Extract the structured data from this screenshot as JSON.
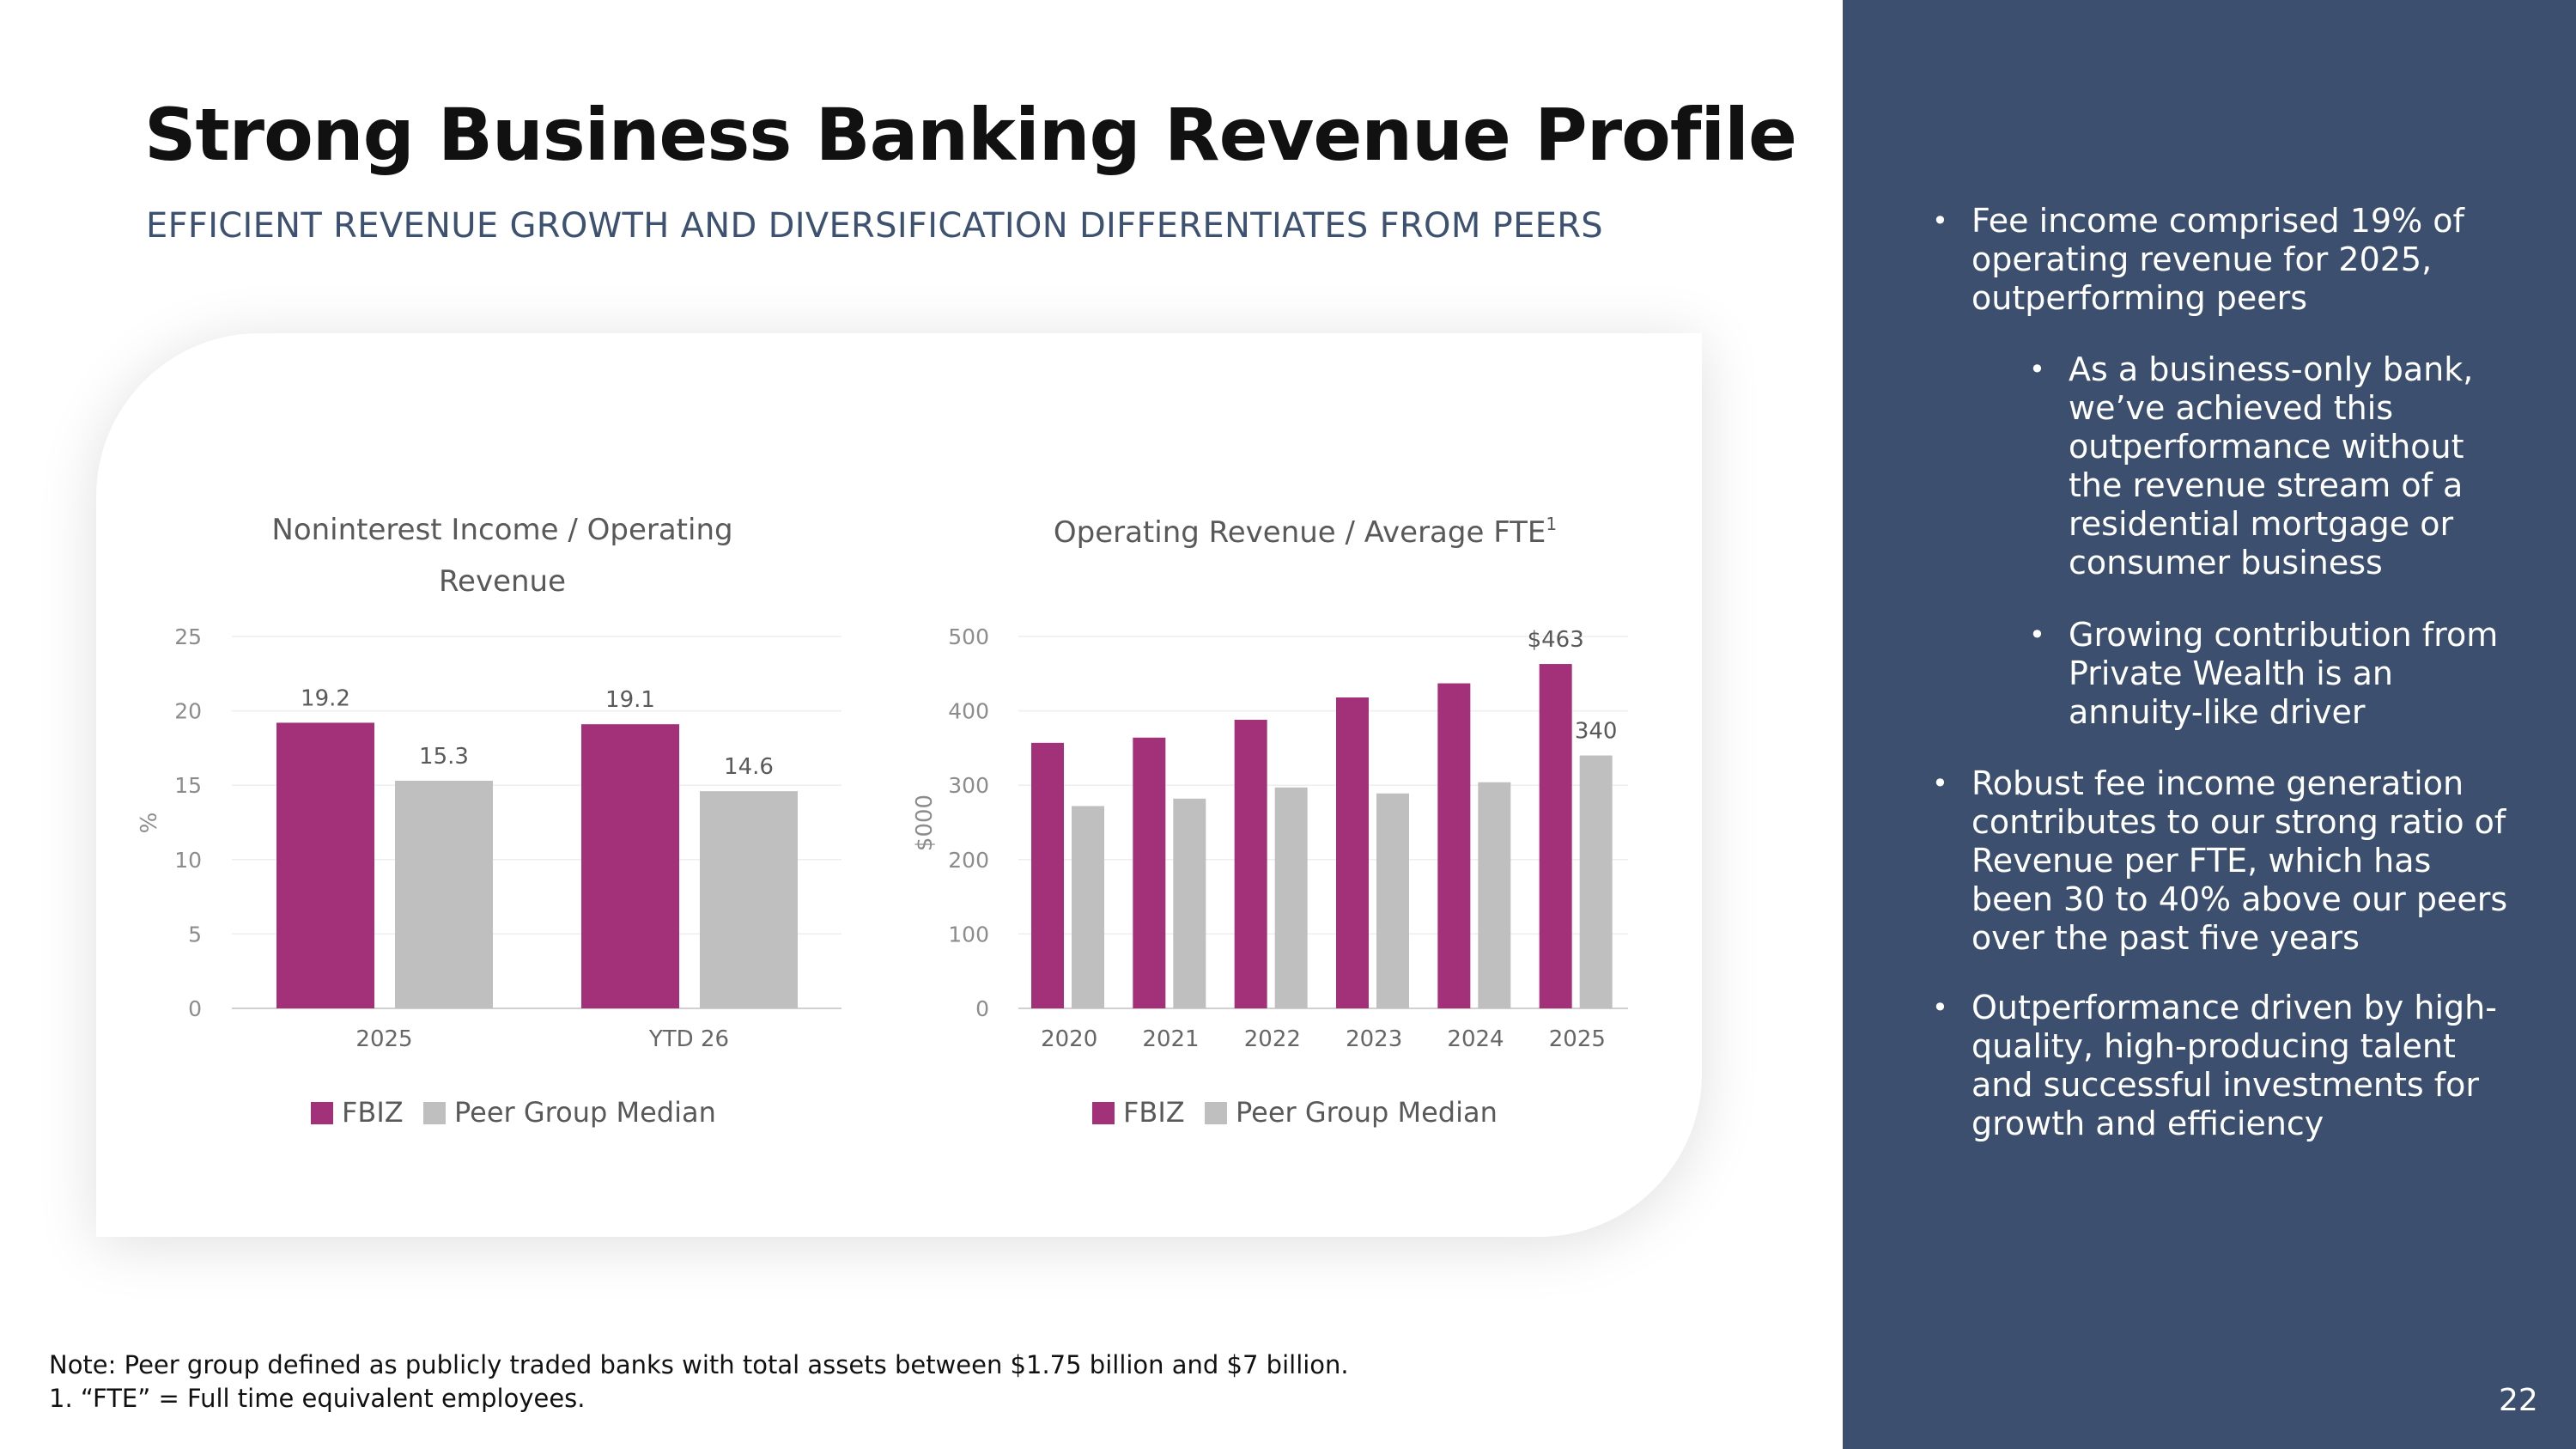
{
  "slide": {
    "title": "Strong Business Banking Revenue Profile",
    "subtitle": "EFFICIENT REVENUE GROWTH AND DIVERSIFICATION DIFFERENTIATES FROM PEERS",
    "page_number": "22",
    "notes": [
      "Note: Peer group defined as publicly traded banks with total assets between $1.75 billion and $7 billion.",
      "1. “FTE” = Full time equivalent employees."
    ]
  },
  "sidebar": {
    "bullets": [
      {
        "text": [
          "Fee income comprised 19% of",
          "operating revenue for 2025,",
          "outperforming peers"
        ]
      },
      {
        "text": [
          "As a business-only bank,",
          "we’ve achieved this",
          "outperformance without",
          "the revenue stream of a",
          "residential mortgage or",
          "consumer business"
        ]
      },
      {
        "text": [
          "Growing contribution from",
          "Private Wealth is an",
          "annuity-like driver"
        ]
      },
      {
        "text": [
          "Robust fee income generation",
          "contributes to our strong ratio of",
          "Revenue per FTE, which has",
          "been 30 to 40% above our peers",
          "over the past five years"
        ]
      },
      {
        "text": [
          "Outperformance driven by high-",
          "quality, high-producing talent",
          "and successful investments for",
          "growth and efficiency"
        ]
      }
    ]
  },
  "colors": {
    "fbiz": "#a3317a",
    "peer": "#bfbfbf",
    "sidebar_bg": "#3c4f6e",
    "subtitle": "#3d5170"
  },
  "chart_data": [
    {
      "type": "bar",
      "title_lines": [
        "Noninterest Income / Operating",
        "Revenue"
      ],
      "ylabel": "%",
      "ylim": [
        0,
        25
      ],
      "yticks": [
        0,
        5,
        10,
        15,
        20,
        25
      ],
      "categories": [
        "2025",
        "YTD 26"
      ],
      "series": [
        {
          "name": "FBIZ",
          "values": [
            19.2,
            19.1
          ],
          "labels": [
            "19.2",
            "19.1"
          ]
        },
        {
          "name": "Peer Group Median",
          "values": [
            15.3,
            14.6
          ],
          "labels": [
            "15.3",
            "14.6"
          ]
        }
      ],
      "legend": "bottom"
    },
    {
      "type": "bar",
      "title": "Operating Revenue / Average FTE",
      "title_superscript": "1",
      "ylabel": "$000",
      "ylim": [
        0,
        500
      ],
      "yticks": [
        0,
        100,
        200,
        300,
        400,
        500
      ],
      "categories": [
        "2020",
        "2021",
        "2022",
        "2023",
        "2024",
        "2025"
      ],
      "series": [
        {
          "name": "FBIZ",
          "values": [
            357,
            364,
            388,
            418,
            437,
            463
          ],
          "labels": [
            "",
            "",
            "",
            "",
            "",
            "$463"
          ]
        },
        {
          "name": "Peer Group Median",
          "values": [
            272,
            282,
            297,
            289,
            304,
            340
          ],
          "labels": [
            "",
            "",
            "",
            "",
            "",
            "340"
          ]
        }
      ],
      "legend": "bottom"
    }
  ]
}
